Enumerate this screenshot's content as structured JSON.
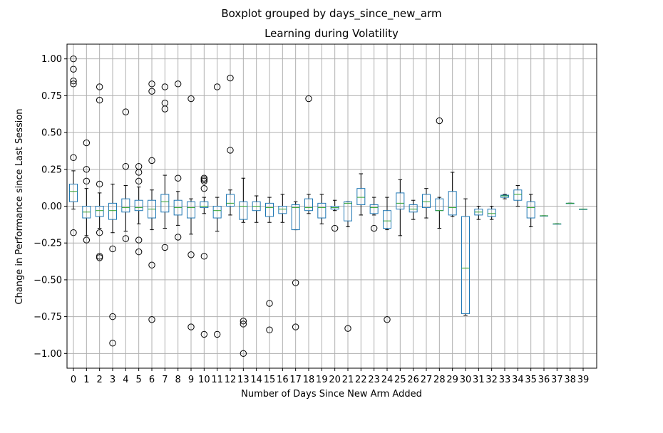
{
  "chart_data": {
    "type": "boxplot",
    "suptitle": "Boxplot grouped by days_since_new_arm",
    "title": "Learning during Volatility",
    "xlabel": "Number of Days Since New Arm Added",
    "ylabel": "Change in Performance since Last Session",
    "ylim": [
      -1.1,
      1.1
    ],
    "yticks": [
      1.0,
      0.75,
      0.5,
      0.25,
      0.0,
      -0.25,
      -0.5,
      -0.75,
      -1.0
    ],
    "ytick_labels": [
      "1.00",
      "0.75",
      "0.50",
      "0.25",
      "0.00",
      "−0.25",
      "−0.50",
      "−0.75",
      "−1.00"
    ],
    "grid": true,
    "categories": [
      "0",
      "1",
      "2",
      "3",
      "4",
      "5",
      "6",
      "7",
      "8",
      "9",
      "10",
      "11",
      "12",
      "13",
      "14",
      "15",
      "16",
      "17",
      "18",
      "19",
      "20",
      "21",
      "22",
      "23",
      "24",
      "25",
      "26",
      "27",
      "28",
      "29",
      "30",
      "31",
      "32",
      "33",
      "34",
      "35",
      "36",
      "37",
      "38",
      "39"
    ],
    "boxes": [
      {
        "wlo": -0.02,
        "q1": 0.03,
        "med": 0.1,
        "q3": 0.15,
        "whi": 0.24,
        "fliers": [
          1.0,
          0.93,
          0.85,
          0.83,
          0.33,
          -0.18
        ]
      },
      {
        "wlo": -0.2,
        "q1": -0.08,
        "med": -0.04,
        "q3": 0.0,
        "whi": 0.12,
        "fliers": [
          0.43,
          0.25,
          0.17,
          -0.23
        ]
      },
      {
        "wlo": -0.15,
        "q1": -0.07,
        "med": -0.03,
        "q3": 0.0,
        "whi": 0.09,
        "fliers": [
          0.81,
          0.72,
          0.15,
          -0.18,
          -0.34,
          -0.35
        ]
      },
      {
        "wlo": -0.18,
        "q1": -0.09,
        "med": -0.03,
        "q3": 0.02,
        "whi": 0.15,
        "fliers": [
          -0.29,
          -0.75,
          -0.93
        ]
      },
      {
        "wlo": -0.17,
        "q1": -0.04,
        "med": -0.01,
        "q3": 0.05,
        "whi": 0.14,
        "fliers": [
          0.64,
          0.27,
          -0.22
        ]
      },
      {
        "wlo": -0.12,
        "q1": -0.03,
        "med": -0.01,
        "q3": 0.04,
        "whi": 0.13,
        "fliers": [
          0.27,
          0.23,
          0.17,
          -0.23,
          -0.31
        ]
      },
      {
        "wlo": -0.16,
        "q1": -0.08,
        "med": -0.02,
        "q3": 0.04,
        "whi": 0.11,
        "fliers": [
          0.83,
          0.78,
          0.31,
          -0.4,
          -0.77
        ]
      },
      {
        "wlo": -0.15,
        "q1": -0.04,
        "med": 0.03,
        "q3": 0.08,
        "whi": 0.21,
        "fliers": [
          0.81,
          0.7,
          0.66,
          -0.28
        ]
      },
      {
        "wlo": -0.13,
        "q1": -0.06,
        "med": -0.01,
        "q3": 0.04,
        "whi": 0.1,
        "fliers": [
          0.83,
          0.19,
          -0.21
        ]
      },
      {
        "wlo": -0.19,
        "q1": -0.08,
        "med": -0.01,
        "q3": 0.03,
        "whi": 0.05,
        "fliers": [
          0.73,
          -0.33,
          -0.82
        ]
      },
      {
        "wlo": -0.05,
        "q1": -0.01,
        "med": 0.0,
        "q3": 0.03,
        "whi": 0.06,
        "fliers": [
          0.19,
          0.18,
          0.17,
          0.12,
          -0.34,
          -0.87
        ]
      },
      {
        "wlo": -0.17,
        "q1": -0.08,
        "med": -0.03,
        "q3": 0.0,
        "whi": 0.06,
        "fliers": [
          0.81,
          -0.87
        ]
      },
      {
        "wlo": -0.06,
        "q1": 0.0,
        "med": 0.02,
        "q3": 0.08,
        "whi": 0.11,
        "fliers": [
          0.87,
          0.38
        ]
      },
      {
        "wlo": -0.11,
        "q1": -0.09,
        "med": 0.0,
        "q3": 0.03,
        "whi": 0.19,
        "fliers": [
          -0.78,
          -0.8,
          -1.0
        ]
      },
      {
        "wlo": -0.11,
        "q1": -0.03,
        "med": 0.0,
        "q3": 0.03,
        "whi": 0.07,
        "fliers": []
      },
      {
        "wlo": -0.11,
        "q1": -0.07,
        "med": -0.01,
        "q3": 0.02,
        "whi": 0.06,
        "fliers": [
          -0.66,
          -0.84
        ]
      },
      {
        "wlo": -0.11,
        "q1": -0.05,
        "med": -0.02,
        "q3": 0.0,
        "whi": 0.08,
        "fliers": []
      },
      {
        "wlo": -0.16,
        "q1": -0.16,
        "med": -0.01,
        "q3": 0.01,
        "whi": 0.03,
        "fliers": [
          -0.52,
          -0.82
        ]
      },
      {
        "wlo": -0.05,
        "q1": -0.03,
        "med": -0.01,
        "q3": 0.05,
        "whi": 0.08,
        "fliers": [
          0.73
        ]
      },
      {
        "wlo": -0.12,
        "q1": -0.08,
        "med": -0.01,
        "q3": 0.02,
        "whi": 0.08,
        "fliers": []
      },
      {
        "wlo": -0.03,
        "q1": -0.02,
        "med": -0.01,
        "q3": 0.0,
        "whi": 0.04,
        "fliers": [
          -0.15
        ]
      },
      {
        "wlo": -0.14,
        "q1": -0.1,
        "med": 0.02,
        "q3": 0.03,
        "whi": 0.03,
        "fliers": [
          -0.83
        ]
      },
      {
        "wlo": -0.06,
        "q1": 0.01,
        "med": 0.06,
        "q3": 0.12,
        "whi": 0.22,
        "fliers": []
      },
      {
        "wlo": -0.06,
        "q1": -0.05,
        "med": -0.01,
        "q3": 0.01,
        "whi": 0.06,
        "fliers": [
          -0.15
        ]
      },
      {
        "wlo": -0.16,
        "q1": -0.15,
        "med": -0.1,
        "q3": -0.03,
        "whi": 0.06,
        "fliers": [
          -0.77
        ]
      },
      {
        "wlo": -0.2,
        "q1": -0.02,
        "med": 0.02,
        "q3": 0.09,
        "whi": 0.18,
        "fliers": []
      },
      {
        "wlo": -0.09,
        "q1": -0.04,
        "med": -0.02,
        "q3": 0.01,
        "whi": 0.04,
        "fliers": []
      },
      {
        "wlo": -0.08,
        "q1": -0.01,
        "med": 0.03,
        "q3": 0.08,
        "whi": 0.12,
        "fliers": []
      },
      {
        "wlo": -0.15,
        "q1": -0.03,
        "med": -0.03,
        "q3": 0.05,
        "whi": 0.06,
        "fliers": [
          0.58
        ]
      },
      {
        "wlo": -0.07,
        "q1": -0.06,
        "med": -0.01,
        "q3": 0.1,
        "whi": 0.23,
        "fliers": []
      },
      {
        "wlo": -0.74,
        "q1": -0.73,
        "med": -0.42,
        "q3": -0.07,
        "whi": 0.05,
        "fliers": []
      },
      {
        "wlo": -0.09,
        "q1": -0.06,
        "med": -0.04,
        "q3": -0.02,
        "whi": 0.0,
        "fliers": []
      },
      {
        "wlo": -0.09,
        "q1": -0.07,
        "med": -0.05,
        "q3": -0.02,
        "whi": 0.0,
        "fliers": []
      },
      {
        "wlo": 0.05,
        "q1": 0.06,
        "med": 0.07,
        "q3": 0.075,
        "whi": 0.08,
        "fliers": []
      },
      {
        "wlo": 0.0,
        "q1": 0.04,
        "med": 0.08,
        "q3": 0.11,
        "whi": 0.14,
        "fliers": []
      },
      {
        "wlo": -0.14,
        "q1": -0.08,
        "med": -0.01,
        "q3": 0.03,
        "whi": 0.08,
        "fliers": []
      },
      {
        "wlo": -0.065,
        "q1": -0.065,
        "med": -0.065,
        "q3": -0.065,
        "whi": -0.065,
        "fliers": []
      },
      {
        "wlo": -0.12,
        "q1": -0.12,
        "med": -0.12,
        "q3": -0.12,
        "whi": -0.12,
        "fliers": []
      },
      {
        "wlo": 0.02,
        "q1": 0.02,
        "med": 0.02,
        "q3": 0.02,
        "whi": 0.02,
        "fliers": []
      },
      {
        "wlo": -0.02,
        "q1": -0.02,
        "med": -0.02,
        "q3": -0.02,
        "whi": -0.02,
        "fliers": []
      }
    ]
  }
}
